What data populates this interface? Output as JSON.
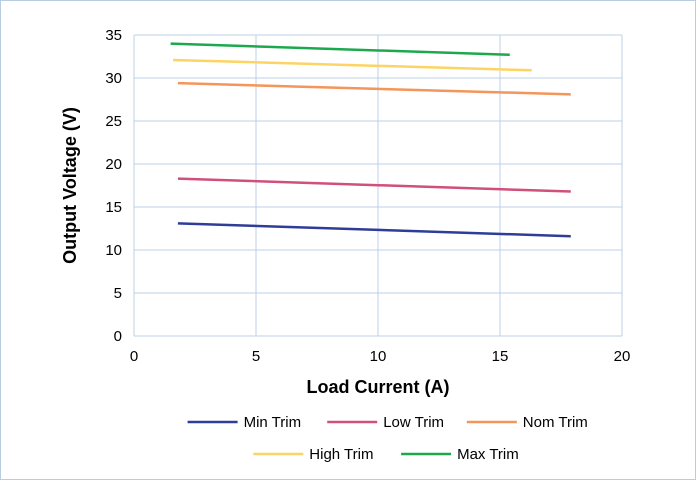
{
  "chart_data": {
    "type": "line",
    "xlabel": "Load Current (A)",
    "ylabel": "Output Voltage (V)",
    "xlim": [
      0,
      20
    ],
    "ylim": [
      0,
      35
    ],
    "x_ticks": [
      0,
      5,
      10,
      15,
      20
    ],
    "y_ticks": [
      0,
      5,
      10,
      15,
      20,
      25,
      30,
      35
    ],
    "grid": true,
    "legend_position": "bottom",
    "series": [
      {
        "name": "Min Trim",
        "color": "#2e3d98",
        "x": [
          1.8,
          17.9
        ],
        "y": [
          13.1,
          11.6
        ]
      },
      {
        "name": "Low Trim",
        "color": "#d0507a",
        "x": [
          1.8,
          17.9
        ],
        "y": [
          18.3,
          16.8
        ]
      },
      {
        "name": "Nom Trim",
        "color": "#f4955a",
        "x": [
          1.8,
          17.9
        ],
        "y": [
          29.4,
          28.1
        ]
      },
      {
        "name": "High Trim",
        "color": "#fdd464",
        "x": [
          1.6,
          16.3
        ],
        "y": [
          32.1,
          30.9
        ]
      },
      {
        "name": "Max Trim",
        "color": "#1ea84e",
        "x": [
          1.5,
          15.4
        ],
        "y": [
          34.0,
          32.7
        ]
      }
    ]
  }
}
